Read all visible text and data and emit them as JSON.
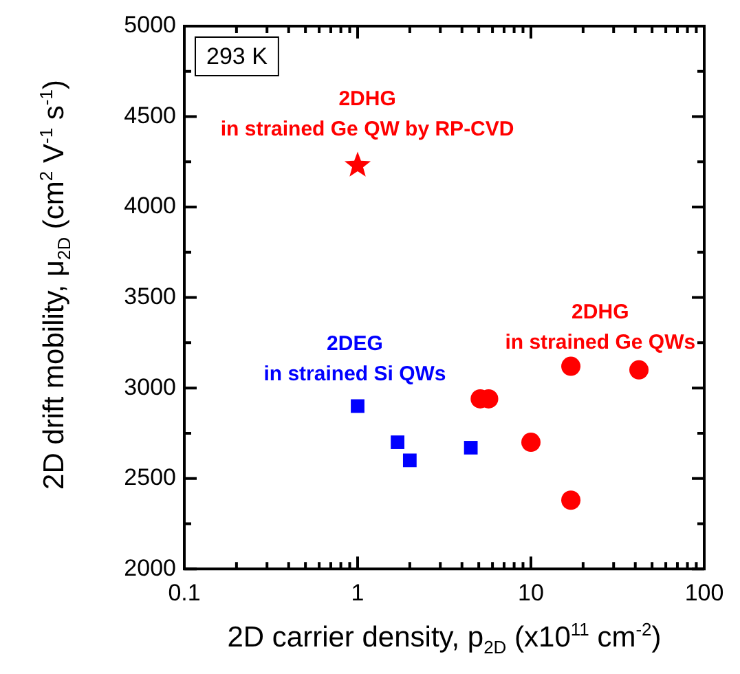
{
  "chart_data": {
    "type": "scatter",
    "xlabel": "2D carrier density, p$_{2D}$ (x10$^{11}$ cm$^{-2}$)",
    "ylabel": "2D drift mobility, μ$_{2D}$ (cm$^{2}$ V$^{-1}$ s$^{-1}$)",
    "log": "x",
    "grid": false,
    "legend": false,
    "xlim": [
      0.1,
      100
    ],
    "ylim": [
      2000,
      5000
    ],
    "xticks": [
      {
        "value": 0.1,
        "label": "0.1"
      },
      {
        "value": 0.2,
        "label": null
      },
      {
        "value": 0.3,
        "label": null
      },
      {
        "value": 0.4,
        "label": null
      },
      {
        "value": 0.5,
        "label": null
      },
      {
        "value": 0.6,
        "label": null
      },
      {
        "value": 0.7,
        "label": null
      },
      {
        "value": 0.8,
        "label": null
      },
      {
        "value": 0.9,
        "label": null
      },
      1,
      {
        "value": 2,
        "label": null
      },
      {
        "value": 3,
        "label": null
      },
      {
        "value": 4,
        "label": null
      },
      {
        "value": 5,
        "label": null
      },
      {
        "value": 6,
        "label": null
      },
      {
        "value": 7,
        "label": null
      },
      {
        "value": 8,
        "label": null
      },
      {
        "value": 9,
        "label": null
      },
      10,
      {
        "value": 20,
        "label": null
      },
      {
        "value": 30,
        "label": null
      },
      {
        "value": 40,
        "label": null
      },
      {
        "value": 50,
        "label": null
      },
      {
        "value": 60,
        "label": null
      },
      {
        "value": 70,
        "label": null
      },
      {
        "value": 80,
        "label": null
      },
      {
        "value": 90,
        "label": null
      },
      100
    ],
    "yticks": [
      2000,
      {
        "value": 2250,
        "label": null
      },
      2500,
      {
        "value": 2750,
        "label": null
      },
      3000,
      {
        "value": 3250,
        "label": null
      },
      3500,
      {
        "value": 3750,
        "label": null
      },
      4000,
      {
        "value": 4250,
        "label": null
      },
      4500,
      {
        "value": 4750,
        "label": null
      },
      5000
    ],
    "series": [
      {
        "color": "#0000ff",
        "marker": "square",
        "x": [
          1,
          1.7,
          2,
          4.5
        ],
        "values": [
          2900,
          2700,
          2600,
          2670
        ]
      },
      {
        "color": "#ff0000",
        "marker": "circle",
        "x": [
          5.1,
          5.7,
          10,
          17,
          42,
          17
        ],
        "values": [
          2940,
          2940,
          2700,
          3120,
          3100,
          2380
        ]
      },
      {
        "color": "#ff0000",
        "marker": "star",
        "x": [
          1
        ],
        "values": [
          4230
        ]
      }
    ],
    "annotations": [
      "293 K",
      "2DHG\nin strained Ge QW by RP-CVD",
      "2DEG\nin strained Si QWs",
      "2DHG\nin strained Ge QWs"
    ]
  }
}
